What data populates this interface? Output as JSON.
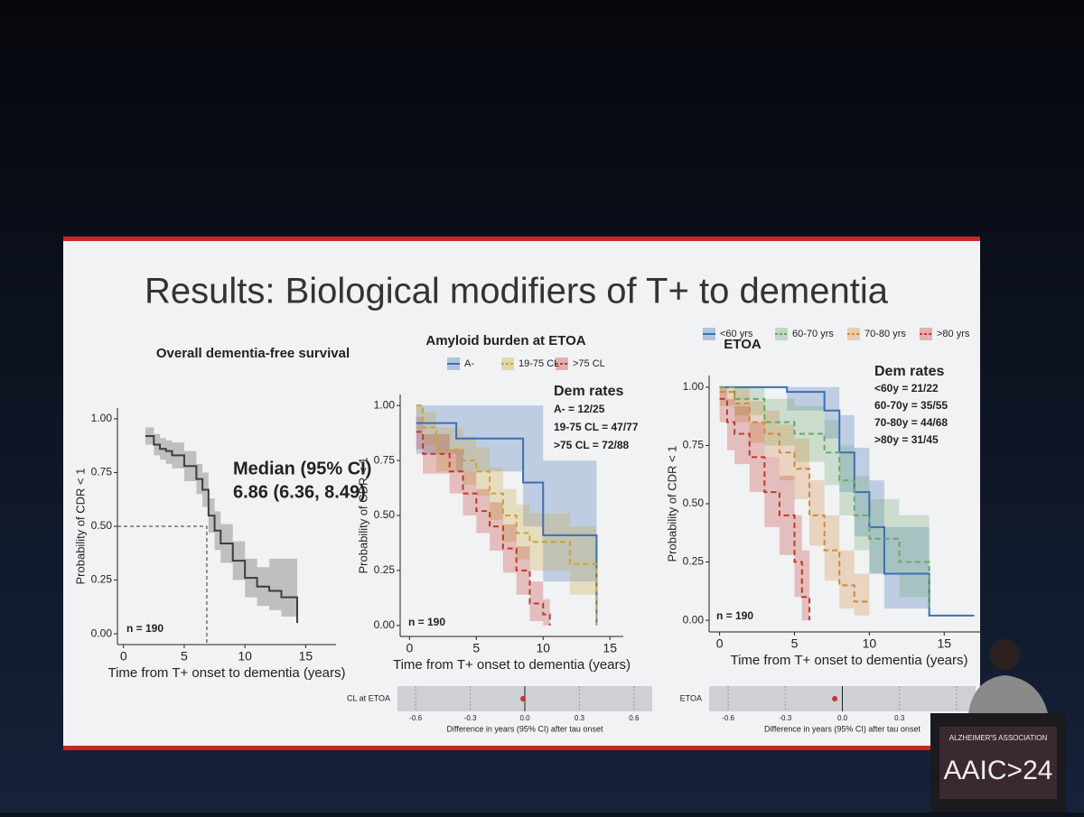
{
  "slide": {
    "title": "Results: Biological modifiers of T+ to dementia"
  },
  "podium": {
    "org": "ALZHEIMER'S ASSOCIATION",
    "event": "AAIC>24"
  },
  "chart_data": [
    {
      "type": "km",
      "title": "Overall dementia-free survival",
      "xlabel": "Time from T+ onset to dementia (years)",
      "ylabel": "Probability of CDR < 1",
      "xlim": [
        -0.5,
        17.5
      ],
      "xticks": [
        0,
        5,
        10,
        15
      ],
      "ylim": [
        -0.05,
        1.05
      ],
      "yticks": [
        {
          "value": 0,
          "label": "0.00"
        },
        0.25,
        {
          "value": 0.5,
          "label": "0.50"
        },
        0.75,
        {
          "value": 1,
          "label": "1.00"
        }
      ],
      "median": 6.86,
      "annotations": [
        "Median (95% CI)",
        "6.86 (6.36, 8.49)"
      ],
      "n_label": "n = 190",
      "series": [
        {
          "color": "#3d3d3d",
          "dashed": false,
          "x": [
            1.8,
            2.5,
            3,
            3.5,
            4,
            5,
            6,
            6.5,
            7,
            7.5,
            8,
            9,
            10,
            11,
            12,
            13,
            14,
            14.3
          ],
          "values": [
            0.92,
            0.88,
            0.86,
            0.85,
            0.83,
            0.78,
            0.72,
            0.67,
            0.55,
            0.48,
            0.42,
            0.34,
            0.26,
            0.22,
            0.2,
            0.17,
            0.17,
            0.05
          ],
          "lower": [
            0.88,
            0.83,
            0.81,
            0.79,
            0.77,
            0.71,
            0.65,
            0.59,
            0.47,
            0.39,
            0.33,
            0.25,
            0.17,
            0.13,
            0.11,
            0.08,
            0.08,
            0.05
          ],
          "upper": [
            0.96,
            0.93,
            0.91,
            0.9,
            0.89,
            0.85,
            0.79,
            0.75,
            0.63,
            0.57,
            0.51,
            0.43,
            0.35,
            0.31,
            0.35,
            0.35,
            0.35,
            0.35
          ]
        }
      ]
    },
    {
      "type": "km",
      "title": "Amyloid burden at ETOA",
      "xlabel": "Time from T+ onset to dementia (years)",
      "ylabel": "Probability of CDR < 1",
      "xlim": [
        -0.7,
        16
      ],
      "xticks": [
        0,
        5,
        10,
        15
      ],
      "ylim": [
        -0.05,
        1.05
      ],
      "yticks": [
        {
          "value": 0,
          "label": "0.00"
        },
        0.25,
        {
          "value": 0.5,
          "label": "0.50"
        },
        0.75,
        {
          "value": 1,
          "label": "1.00"
        }
      ],
      "annotations": [
        "Dem rates",
        "A- = 12/25",
        "19-75 CL = 47/77",
        ">75 CL = 72/88"
      ],
      "n_label": "n = 190",
      "series": [
        {
          "name": "A-",
          "color": "#3b6fb3",
          "dashed": false,
          "x": [
            0.5,
            2.5,
            3.5,
            6,
            8,
            8.5,
            10,
            14
          ],
          "values": [
            0.92,
            0.92,
            0.85,
            0.85,
            0.85,
            0.65,
            0.41,
            0
          ],
          "lower": [
            0.78,
            0.78,
            0.7,
            0.7,
            0.7,
            0.45,
            0.2,
            0
          ],
          "upper": [
            1,
            1,
            1,
            1,
            1,
            1,
            0.75,
            0.75
          ]
        },
        {
          "name": "19-75 CL",
          "color": "#c9a43a",
          "dashed": true,
          "x": [
            0.5,
            1,
            2,
            4,
            5,
            6,
            7,
            8,
            9,
            10,
            12,
            14
          ],
          "values": [
            1,
            0.9,
            0.8,
            0.75,
            0.7,
            0.6,
            0.5,
            0.42,
            0.38,
            0.38,
            0.28,
            0
          ],
          "lower": [
            0.95,
            0.82,
            0.7,
            0.64,
            0.59,
            0.48,
            0.38,
            0.3,
            0.25,
            0.25,
            0.14,
            0
          ],
          "upper": [
            1,
            0.97,
            0.9,
            0.86,
            0.81,
            0.72,
            0.62,
            0.55,
            0.51,
            0.51,
            0.45,
            0
          ]
        },
        {
          "name": ">75 CL",
          "color": "#c0392b",
          "dashed": true,
          "x": [
            0.5,
            1,
            2,
            3,
            4,
            5,
            6,
            7,
            8,
            9,
            10,
            10.5
          ],
          "values": [
            0.88,
            0.78,
            0.78,
            0.7,
            0.6,
            0.52,
            0.45,
            0.35,
            0.25,
            0.1,
            0.05,
            0
          ],
          "lower": [
            0.8,
            0.69,
            0.69,
            0.6,
            0.5,
            0.42,
            0.34,
            0.24,
            0.14,
            0.02,
            0,
            0
          ],
          "upper": [
            0.95,
            0.87,
            0.87,
            0.8,
            0.7,
            0.62,
            0.56,
            0.46,
            0.36,
            0.2,
            0.12,
            0
          ]
        }
      ]
    },
    {
      "type": "km",
      "title": "ETOA",
      "xlabel": "Time from T+ onset to dementia (years)",
      "ylabel": "Probability of CDR < 1",
      "xlim": [
        -0.7,
        18
      ],
      "xticks": [
        0,
        5,
        10,
        15
      ],
      "ylim": [
        -0.05,
        1.05
      ],
      "yticks": [
        {
          "value": 0,
          "label": "0.00"
        },
        0.25,
        {
          "value": 0.5,
          "label": "0.50"
        },
        0.75,
        {
          "value": 1,
          "label": "1.00"
        }
      ],
      "annotations": [
        "Dem rates",
        "<60y = 21/22",
        "60-70y = 35/55",
        "70-80y = 44/68",
        ">80y = 31/45"
      ],
      "n_label": "n = 190",
      "series": [
        {
          "name": "<60 yrs",
          "color": "#3b6fb3",
          "dashed": false,
          "x": [
            0,
            4,
            4.5,
            7,
            8,
            9,
            10,
            11,
            14,
            17
          ],
          "values": [
            1,
            1,
            0.98,
            0.9,
            0.72,
            0.55,
            0.4,
            0.2,
            0.02,
            0.02
          ],
          "lower": [
            1,
            1,
            0.9,
            0.78,
            0.55,
            0.36,
            0.2,
            0.05,
            0.02,
            0.02
          ],
          "upper": [
            1,
            1,
            1,
            1,
            0.88,
            0.74,
            0.6,
            0.4,
            0.02,
            0.02
          ]
        },
        {
          "name": "60-70 yrs",
          "color": "#6aa86a",
          "dashed": true,
          "x": [
            0,
            1,
            3,
            5,
            7,
            8,
            9,
            10,
            12,
            14
          ],
          "values": [
            1,
            0.95,
            0.85,
            0.8,
            0.72,
            0.6,
            0.45,
            0.35,
            0.25,
            0.05
          ],
          "lower": [
            1,
            0.88,
            0.75,
            0.68,
            0.58,
            0.45,
            0.3,
            0.2,
            0.1,
            0.05
          ],
          "upper": [
            1,
            1,
            0.95,
            0.92,
            0.86,
            0.75,
            0.62,
            0.52,
            0.45,
            0.05
          ]
        },
        {
          "name": "70-80 yrs",
          "color": "#d08a3a",
          "dashed": true,
          "x": [
            0,
            1,
            2,
            3,
            4,
            5,
            6,
            7,
            8,
            9,
            10
          ],
          "values": [
            0.98,
            0.93,
            0.85,
            0.8,
            0.72,
            0.65,
            0.45,
            0.3,
            0.15,
            0.08,
            0.08
          ],
          "lower": [
            0.92,
            0.85,
            0.76,
            0.7,
            0.6,
            0.52,
            0.32,
            0.17,
            0.05,
            0.02,
            0.02
          ],
          "upper": [
            1,
            1,
            0.94,
            0.9,
            0.84,
            0.78,
            0.6,
            0.45,
            0.3,
            0.2,
            0.2
          ]
        },
        {
          "name": ">80 yrs",
          "color": "#c0392b",
          "dashed": true,
          "x": [
            0,
            0.5,
            1,
            2,
            3,
            4,
            5,
            5.5,
            6
          ],
          "values": [
            0.95,
            0.85,
            0.8,
            0.7,
            0.55,
            0.45,
            0.25,
            0.1,
            0
          ],
          "lower": [
            0.85,
            0.73,
            0.67,
            0.55,
            0.4,
            0.28,
            0.1,
            0,
            0
          ],
          "upper": [
            1,
            0.95,
            0.92,
            0.85,
            0.7,
            0.62,
            0.45,
            0.3,
            0
          ]
        }
      ]
    },
    {
      "type": "forest",
      "categories": [
        "CL at ETOA"
      ],
      "values": [
        -0.01
      ],
      "color": "#c0392b",
      "xlim": [
        -0.7,
        0.7
      ],
      "xticks": [
        -0.6,
        -0.3,
        {
          "value": 0,
          "label": "0.0"
        },
        0.3,
        0.6
      ],
      "xlabel": "Difference in years (95% CI) after tau onset"
    },
    {
      "type": "forest",
      "categories": [
        "ETOA"
      ],
      "values": [
        -0.04
      ],
      "color": "#c0392b",
      "xlim": [
        -0.7,
        0.7
      ],
      "xticks": [
        -0.6,
        -0.3,
        {
          "value": 0,
          "label": "0.0"
        },
        0.3,
        0.6
      ],
      "xlabel": "Difference in years (95% CI) after tau onset"
    }
  ]
}
